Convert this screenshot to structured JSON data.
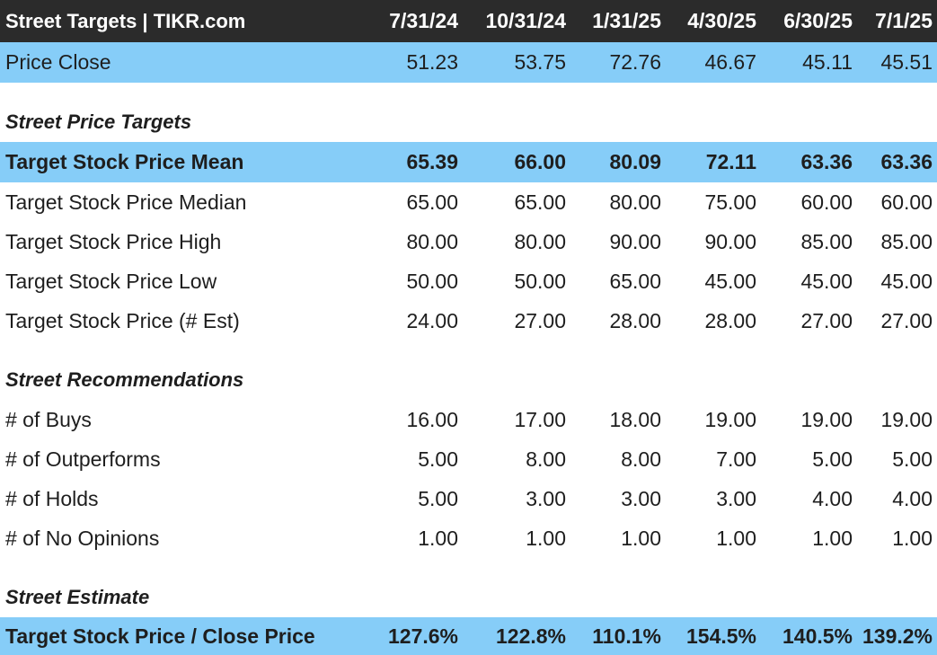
{
  "header": {
    "title": "Street Targets | TIKR.com",
    "dates": [
      "7/31/24",
      "10/31/24",
      "1/31/25",
      "4/30/25",
      "6/30/25",
      "7/1/25"
    ]
  },
  "price_close": {
    "label": "Price Close",
    "values": [
      "51.23",
      "53.75",
      "72.76",
      "46.67",
      "45.11",
      "45.51"
    ]
  },
  "sections": {
    "price_targets": "Street Price Targets",
    "recommendations": "Street Recommendations",
    "estimate": "Street Estimate"
  },
  "price_targets": [
    {
      "label": "Target Stock Price Mean",
      "values": [
        "65.39",
        "66.00",
        "80.09",
        "72.11",
        "63.36",
        "63.36"
      ]
    },
    {
      "label": "Target Stock Price Median",
      "values": [
        "65.00",
        "65.00",
        "80.00",
        "75.00",
        "60.00",
        "60.00"
      ]
    },
    {
      "label": "Target Stock Price High",
      "values": [
        "80.00",
        "80.00",
        "90.00",
        "90.00",
        "85.00",
        "85.00"
      ]
    },
    {
      "label": "Target Stock Price Low",
      "values": [
        "50.00",
        "50.00",
        "65.00",
        "45.00",
        "45.00",
        "45.00"
      ]
    },
    {
      "label": "Target Stock Price (# Est)",
      "values": [
        "24.00",
        "27.00",
        "28.00",
        "28.00",
        "27.00",
        "27.00"
      ]
    }
  ],
  "recommendations": [
    {
      "label": "# of Buys",
      "values": [
        "16.00",
        "17.00",
        "18.00",
        "19.00",
        "19.00",
        "19.00"
      ]
    },
    {
      "label": "# of Outperforms",
      "values": [
        "5.00",
        "8.00",
        "8.00",
        "7.00",
        "5.00",
        "5.00"
      ]
    },
    {
      "label": "# of Holds",
      "values": [
        "5.00",
        "3.00",
        "3.00",
        "3.00",
        "4.00",
        "4.00"
      ]
    },
    {
      "label": "# of No Opinions",
      "values": [
        "1.00",
        "1.00",
        "1.00",
        "1.00",
        "1.00",
        "1.00"
      ]
    }
  ],
  "estimate": {
    "label": "Target Stock Price / Close Price",
    "values": [
      "127.6%",
      "122.8%",
      "110.1%",
      "154.5%",
      "140.5%",
      "139.2%"
    ]
  },
  "colors": {
    "header_bg": "#2b2b2b",
    "highlight_bg": "#86cdf8",
    "text": "#1e1e1e"
  }
}
